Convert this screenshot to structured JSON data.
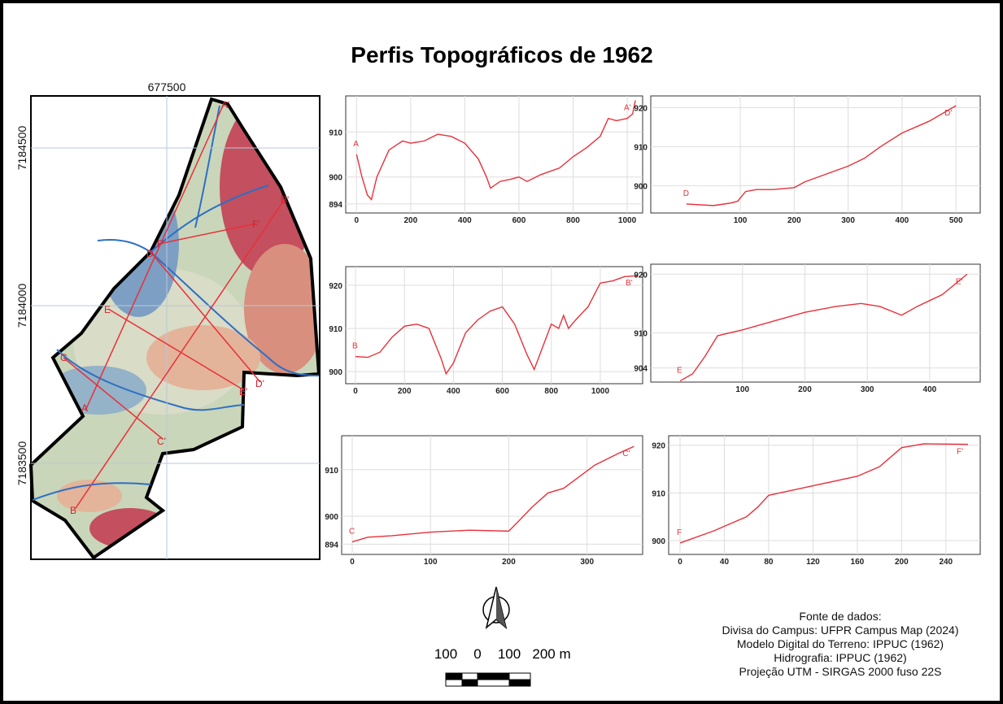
{
  "title": "Perfis Topográficos de 1962",
  "map": {
    "coords": [
      "677500",
      "7184500",
      "7184000",
      "7183500"
    ],
    "labels": [
      "A",
      "A'",
      "B",
      "B'",
      "C",
      "C'",
      "D",
      "D'",
      "E",
      "E'",
      "F",
      "F'"
    ]
  },
  "chart_data": [
    {
      "type": "line",
      "color": "#e8303a",
      "grid": true,
      "annotations": [
        "A",
        "A'"
      ],
      "x": [
        0,
        20,
        40,
        55,
        75,
        120,
        170,
        200,
        250,
        300,
        350,
        400,
        450,
        480,
        495,
        530,
        570,
        600,
        630,
        680,
        750,
        800,
        850,
        900,
        930,
        960,
        1000,
        1020,
        1030
      ],
      "values": [
        905,
        900,
        896,
        895,
        900,
        906,
        908,
        907.5,
        908,
        909.5,
        909,
        907.5,
        904,
        900,
        897.5,
        899,
        899.5,
        900,
        899,
        900.5,
        902,
        904.5,
        906.5,
        909,
        913,
        912.5,
        913,
        914,
        917
      ],
      "xlim": [
        -40,
        1057
      ],
      "ylim": [
        892,
        918
      ],
      "xticks": [
        0,
        200,
        400,
        600,
        800,
        1000
      ],
      "yticks": [
        894,
        900,
        910
      ]
    },
    {
      "type": "line",
      "color": "#e8303a",
      "grid": true,
      "annotations": [
        "D",
        "D'"
      ],
      "x": [
        0,
        50,
        80,
        95,
        110,
        130,
        160,
        200,
        220,
        260,
        300,
        330,
        360,
        400,
        450,
        500
      ],
      "values": [
        895.3,
        894.9,
        895.5,
        896,
        898.5,
        899,
        899,
        899.5,
        901,
        903,
        905,
        907,
        910,
        913.5,
        916.5,
        920.5
      ],
      "xlim": [
        -66,
        545
      ],
      "ylim": [
        893,
        923
      ],
      "xticks": [
        100,
        200,
        300,
        400,
        500
      ],
      "yticks": [
        900,
        910,
        920
      ]
    },
    {
      "type": "line",
      "color": "#e8303a",
      "grid": true,
      "annotations": [
        "B",
        "B'"
      ],
      "x": [
        0,
        50,
        100,
        150,
        200,
        250,
        300,
        350,
        370,
        400,
        450,
        500,
        550,
        600,
        650,
        700,
        730,
        760,
        800,
        830,
        850,
        870,
        900,
        950,
        1000,
        1050,
        1100,
        1150
      ],
      "values": [
        903.5,
        903.3,
        904.5,
        908,
        910.5,
        911,
        910,
        903,
        899.5,
        902,
        909,
        912,
        914,
        915,
        911,
        904,
        900.5,
        905,
        911,
        910,
        913,
        910,
        912,
        915,
        920.5,
        921,
        922,
        922.2
      ],
      "xlim": [
        -40,
        1173
      ],
      "ylim": [
        897.2,
        924.3
      ],
      "xticks": [
        0,
        200,
        400,
        600,
        800,
        1000
      ],
      "yticks": [
        900,
        910,
        920
      ]
    },
    {
      "type": "line",
      "color": "#e8303a",
      "grid": true,
      "annotations": [
        "E",
        "E'"
      ],
      "x": [
        0,
        20,
        40,
        60,
        100,
        150,
        200,
        250,
        290,
        320,
        355,
        380,
        420,
        460
      ],
      "values": [
        901.8,
        903,
        906,
        909.5,
        910.5,
        912,
        913.5,
        914.5,
        915,
        914.5,
        913,
        914.5,
        916.5,
        920
      ],
      "xlim": [
        -47,
        481
      ],
      "ylim": [
        901.6,
        921.7
      ],
      "xticks": [
        100,
        200,
        300,
        400
      ],
      "yticks": [
        904,
        910,
        920
      ]
    },
    {
      "type": "line",
      "color": "#e8303a",
      "grid": true,
      "annotations": [
        "C",
        "C'"
      ],
      "x": [
        0,
        20,
        50,
        100,
        150,
        200,
        210,
        230,
        250,
        270,
        290,
        310,
        340,
        360
      ],
      "values": [
        894.5,
        895.5,
        895.8,
        896.6,
        897,
        896.8,
        898.5,
        902,
        905,
        906,
        908.5,
        911,
        913.5,
        915
      ],
      "xlim": [
        -13.5,
        371
      ],
      "ylim": [
        891.8,
        917.3
      ],
      "xticks": [
        0,
        100,
        200,
        300
      ],
      "yticks": [
        894,
        900,
        910
      ]
    },
    {
      "type": "line",
      "color": "#e8303a",
      "grid": true,
      "annotations": [
        "F",
        "F'"
      ],
      "x": [
        0,
        30,
        60,
        70,
        80,
        120,
        160,
        180,
        200,
        220,
        260
      ],
      "values": [
        899.5,
        902,
        905,
        907,
        909.5,
        911.5,
        913.5,
        915.5,
        919.5,
        920.3,
        920.2
      ],
      "xlim": [
        -10.3,
        271
      ],
      "ylim": [
        897.1,
        922
      ],
      "xticks": [
        0,
        40,
        80,
        120,
        160,
        200,
        240
      ],
      "yticks": [
        900,
        910,
        920
      ]
    }
  ],
  "scale": {
    "labels": [
      "100",
      "0",
      "100",
      "200 m"
    ]
  },
  "sources": [
    "Fonte de dados:",
    "Divisa do Campus: UFPR Campus Map (2024)",
    "Modelo Digital do Terreno: IPPUC (1962)",
    "Hidrografia:  IPPUC (1962)",
    "Projeção UTM - SIRGAS 2000 fuso 22S"
  ]
}
